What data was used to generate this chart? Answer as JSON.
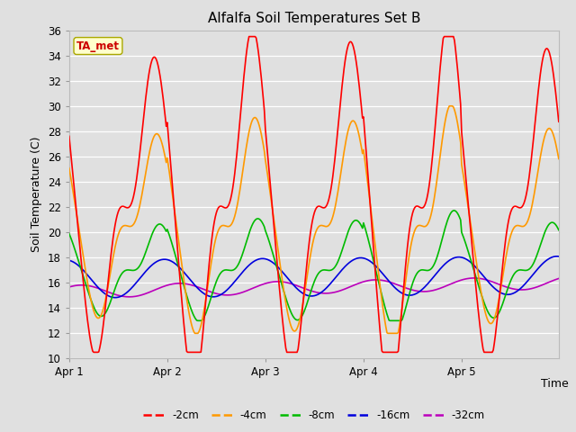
{
  "title": "Alfalfa Soil Temperatures Set B",
  "xlabel": "Time",
  "ylabel": "Soil Temperature (C)",
  "ylim": [
    10,
    36
  ],
  "yticks": [
    10,
    12,
    14,
    16,
    18,
    20,
    22,
    24,
    26,
    28,
    30,
    32,
    34,
    36
  ],
  "background_color": "#e0e0e0",
  "plot_bg_color": "#e0e0e0",
  "colors": {
    "-2cm": "#ff0000",
    "-4cm": "#ff9900",
    "-8cm": "#00bb00",
    "-16cm": "#0000dd",
    "-32cm": "#bb00bb"
  },
  "legend_label": "TA_met",
  "legend_bg": "#ffffcc",
  "legend_border": "#aaa800",
  "legend_text_color": "#cc0000",
  "day_labels": [
    "Apr 1",
    "Apr 2",
    "Apr 3",
    "Apr 4",
    "Apr 5"
  ],
  "n_per_day": 96,
  "n_days": 5
}
